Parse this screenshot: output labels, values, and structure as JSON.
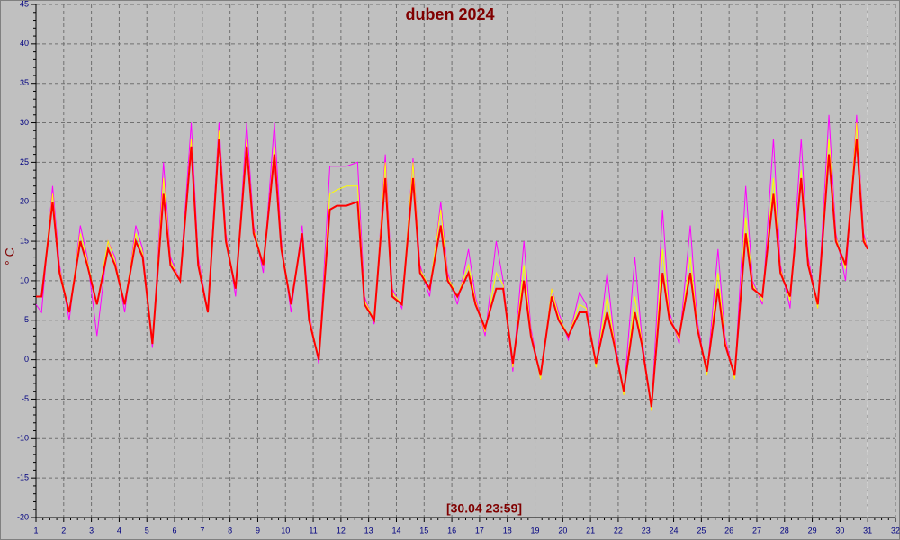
{
  "chart_data": {
    "type": "line",
    "title": "duben 2024",
    "ylabel": "° C",
    "annotation": "[30.04 23:59]",
    "xlim": [
      1,
      32
    ],
    "xticks": [
      1,
      2,
      3,
      4,
      5,
      6,
      7,
      8,
      9,
      10,
      11,
      12,
      13,
      14,
      15,
      16,
      17,
      18,
      19,
      20,
      21,
      22,
      23,
      24,
      25,
      26,
      27,
      28,
      29,
      30,
      31,
      32
    ],
    "ylim": [
      -20,
      45
    ],
    "yticks": [
      -20,
      -15,
      -10,
      -5,
      0,
      5,
      10,
      15,
      20,
      25,
      30,
      35,
      40,
      45
    ],
    "grid": true,
    "marker_x": 31,
    "x": [
      1,
      1.2,
      1.6,
      1.85,
      2.2,
      2.6,
      2.85,
      3.2,
      3.6,
      3.85,
      4.2,
      4.6,
      4.85,
      5.2,
      5.6,
      5.85,
      6.2,
      6.6,
      6.85,
      7.2,
      7.6,
      7.85,
      8.2,
      8.6,
      8.85,
      9.2,
      9.6,
      9.85,
      10.2,
      10.6,
      10.85,
      11.2,
      11.6,
      11.85,
      12.2,
      12.6,
      12.85,
      13.2,
      13.6,
      13.85,
      14.2,
      14.6,
      14.85,
      15.2,
      15.6,
      15.85,
      16.2,
      16.6,
      16.85,
      17.2,
      17.6,
      17.85,
      18.2,
      18.6,
      18.85,
      19.2,
      19.6,
      19.85,
      20.2,
      20.6,
      20.85,
      21.2,
      21.6,
      21.85,
      22.2,
      22.6,
      22.85,
      23.2,
      23.6,
      23.85,
      24.2,
      24.6,
      24.85,
      25.2,
      25.6,
      25.85,
      26.2,
      26.6,
      26.85,
      27.2,
      27.6,
      27.85,
      28.2,
      28.6,
      28.85,
      29.2,
      29.6,
      29.85,
      30.2,
      30.6,
      30.85,
      31
    ],
    "series": [
      {
        "color": "#ff00ff",
        "values": [
          7,
          6,
          22,
          12,
          5,
          17,
          13,
          3,
          15,
          13,
          6,
          17,
          14,
          1.5,
          25,
          13,
          10,
          30,
          13,
          6,
          30,
          16,
          8,
          30,
          17,
          11,
          30,
          15,
          6,
          17,
          6,
          -0.5,
          24.5,
          24.5,
          24.5,
          25,
          8,
          4.5,
          26,
          9,
          6.5,
          25.5,
          12,
          8,
          20,
          11,
          7,
          14,
          8,
          3,
          15,
          10,
          -1.5,
          15,
          4,
          -2.5,
          9,
          6,
          2.5,
          8.5,
          7,
          -1,
          11,
          3,
          -4.5,
          13,
          3,
          -6.5,
          19,
          6,
          2,
          17,
          5,
          -2,
          14,
          3,
          -2.5,
          22,
          10,
          7,
          28,
          12,
          6.5,
          28,
          13,
          6.5,
          31,
          16,
          10,
          31,
          16,
          14
        ]
      },
      {
        "color": "#ffff00",
        "values": [
          8,
          8,
          21,
          11.5,
          6,
          16,
          12.5,
          7,
          15,
          12.5,
          7,
          16,
          13.5,
          2,
          23,
          12.5,
          10,
          28,
          12.5,
          6,
          29,
          15.5,
          9,
          28,
          16.5,
          12,
          27,
          14.5,
          7,
          16,
          5.5,
          0,
          21,
          21.5,
          22,
          22,
          7.5,
          5,
          25,
          8.5,
          7,
          25,
          11.5,
          9,
          19,
          10.5,
          8,
          12,
          7.5,
          3.5,
          11,
          9.5,
          -1,
          12,
          3.5,
          -2.5,
          9,
          5.5,
          3,
          7,
          6.5,
          -1,
          8,
          2.5,
          -4.5,
          8,
          2.5,
          -6.5,
          14,
          5.5,
          2.5,
          13,
          4.5,
          -2,
          11,
          2.5,
          -2.5,
          18,
          9.5,
          7.5,
          23,
          11.5,
          7.5,
          24,
          12.5,
          6.5,
          28,
          15.5,
          11.5,
          30,
          15.5,
          14
        ]
      },
      {
        "color": "#ff0000",
        "values": [
          8,
          8,
          20,
          11,
          6,
          15,
          12,
          7,
          14,
          12,
          7,
          15,
          13,
          2,
          21,
          12,
          10,
          27,
          12,
          6,
          28,
          15,
          9,
          27,
          16,
          12,
          26,
          14,
          7,
          16,
          5,
          0,
          19,
          19.5,
          19.5,
          20,
          7,
          5,
          23,
          8,
          7,
          23,
          11,
          9,
          17,
          10,
          8,
          11,
          7,
          4,
          9,
          9,
          -0.5,
          10,
          3,
          -2,
          8,
          5,
          3,
          6,
          6,
          -0.5,
          6,
          2,
          -4,
          6,
          2,
          -6,
          11,
          5,
          3,
          11,
          4,
          -1.5,
          9,
          2,
          -2,
          16,
          9,
          8,
          21,
          11,
          8,
          23,
          12,
          7,
          26,
          15,
          12,
          28,
          15,
          14
        ]
      }
    ]
  }
}
